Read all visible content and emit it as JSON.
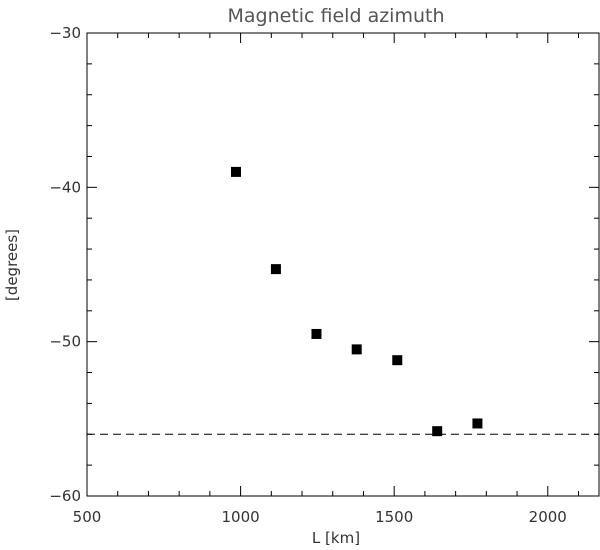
{
  "chart_data": {
    "type": "scatter",
    "title": "Magnetic field azimuth",
    "xlabel": "L [km]",
    "ylabel": "[degrees]",
    "xlim": [
      500,
      2170
    ],
    "ylim": [
      -60,
      -30
    ],
    "xticks": [
      500,
      1000,
      1500,
      2000
    ],
    "xtick_labels": [
      "500",
      "1000",
      "1500",
      "2000"
    ],
    "yticks": [
      -60,
      -50,
      -40,
      -30
    ],
    "ytick_labels": [
      "−60",
      "−50",
      "−40",
      "−30"
    ],
    "x_minor_step": 100,
    "y_minor_step": 2,
    "grid": false,
    "series": [
      {
        "marker": "square",
        "color": "#000000",
        "points": [
          {
            "x": 985,
            "y": -39.0
          },
          {
            "x": 1115,
            "y": -45.3
          },
          {
            "x": 1247,
            "y": -49.5
          },
          {
            "x": 1378,
            "y": -50.5
          },
          {
            "x": 1510,
            "y": -51.2
          },
          {
            "x": 1640,
            "y": -55.8
          },
          {
            "x": 1771,
            "y": -55.3
          }
        ]
      }
    ],
    "reference_lines": [
      {
        "orientation": "horizontal",
        "y": -56.0,
        "style": "dashed",
        "color": "#000000"
      }
    ]
  }
}
